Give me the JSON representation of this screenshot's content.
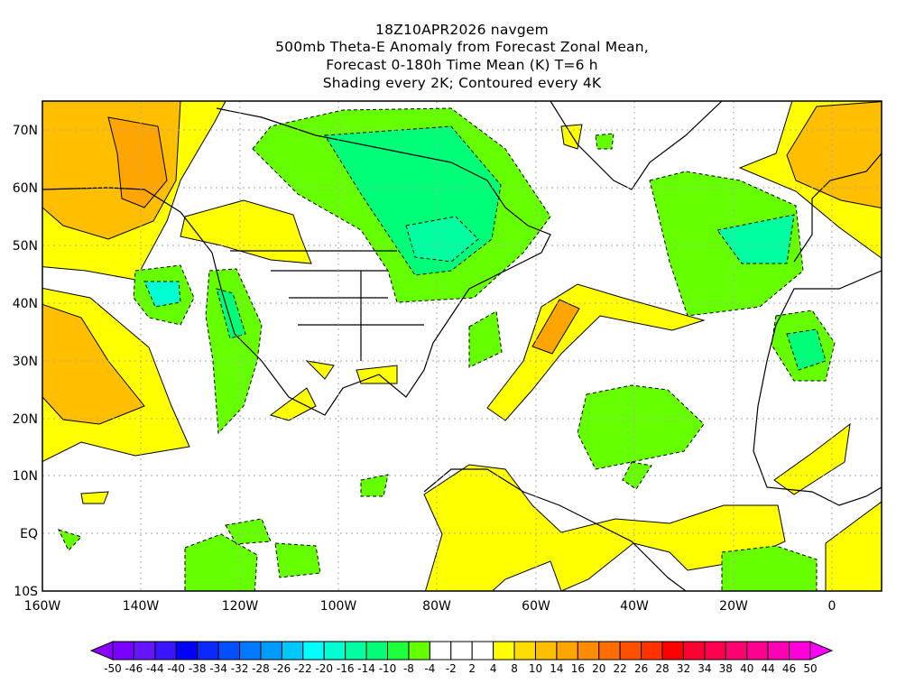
{
  "title": {
    "line1": "18Z10APR2026 navgem",
    "line2": "500mb Theta-E Anomaly from Forecast Zonal Mean,",
    "line3": "Forecast 0-180h Time Mean (K) T=6 h",
    "line4": "Shading every 2K; Contoured every 4K"
  },
  "axes": {
    "lat_labels": [
      "70N",
      "60N",
      "50N",
      "40N",
      "30N",
      "20N",
      "10N",
      "EQ",
      "10S"
    ],
    "lon_labels": [
      "160W",
      "140W",
      "120W",
      "100W",
      "80W",
      "60W",
      "40W",
      "20W",
      "0"
    ]
  },
  "colorbar": {
    "labels": [
      "-50",
      "-46",
      "-44",
      "-40",
      "-38",
      "-34",
      "-32",
      "-28",
      "-26",
      "-22",
      "-20",
      "-16",
      "-14",
      "-10",
      "-8",
      "-4",
      "-2",
      "2",
      "4",
      "8",
      "10",
      "14",
      "16",
      "20",
      "22",
      "26",
      "28",
      "32",
      "34",
      "38",
      "40",
      "44",
      "46",
      "50"
    ],
    "colors": [
      "#7a00ff",
      "#6414ff",
      "#3c14ff",
      "#0000ff",
      "#0a28ff",
      "#0050ff",
      "#0078ff",
      "#009bff",
      "#00c8ff",
      "#00ffff",
      "#00ffd2",
      "#00ffa0",
      "#00ff78",
      "#1eff3c",
      "#66ff00",
      "#ffffff",
      "#ffffff",
      "#ffffff",
      "#ffff00",
      "#ffdc00",
      "#ffbe00",
      "#ffa500",
      "#ff8c00",
      "#ff6e00",
      "#ff5000",
      "#ff3200",
      "#ff0000",
      "#ff0032",
      "#ff0050",
      "#ff006e",
      "#ff0090",
      "#ff00b4",
      "#ff00dc"
    ],
    "low_arrow_color": "#8c00ff",
    "high_arrow_color": "#ff00ff"
  }
}
